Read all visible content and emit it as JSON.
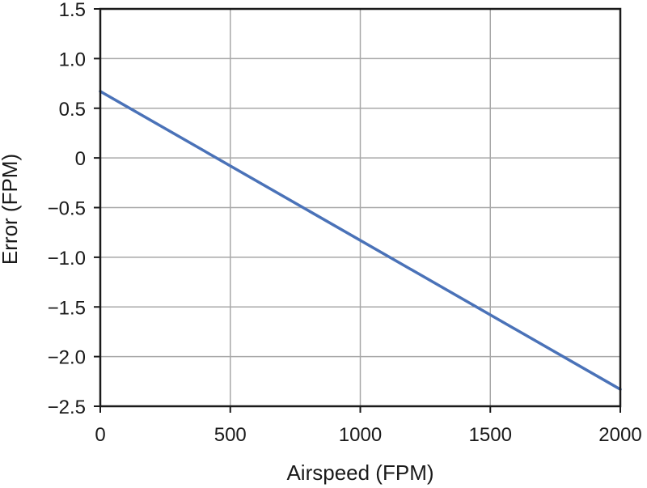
{
  "chart_data": {
    "type": "line",
    "xlabel": "Airspeed (FPM)",
    "ylabel": "Error (FPM)",
    "xlim": [
      0,
      2000
    ],
    "ylim": [
      -2.5,
      1.5
    ],
    "x_ticks": [
      0,
      500,
      1000,
      1500,
      2000
    ],
    "x_tick_labels": [
      "0",
      "500",
      "1000",
      "1500",
      "2000"
    ],
    "y_ticks": [
      1.5,
      1.0,
      0.5,
      0,
      -0.5,
      -1.0,
      -1.5,
      -2.0,
      -2.5
    ],
    "y_tick_labels": [
      "1.5",
      "1.0",
      "0.5",
      "0",
      "−0.5",
      "−1.0",
      "−1.5",
      "−2.0",
      "−2.5"
    ],
    "grid": true,
    "legend": "none",
    "series": [
      {
        "color": "#4a72b8",
        "x": [
          0,
          2000
        ],
        "y": [
          0.67,
          -2.33
        ]
      }
    ]
  }
}
